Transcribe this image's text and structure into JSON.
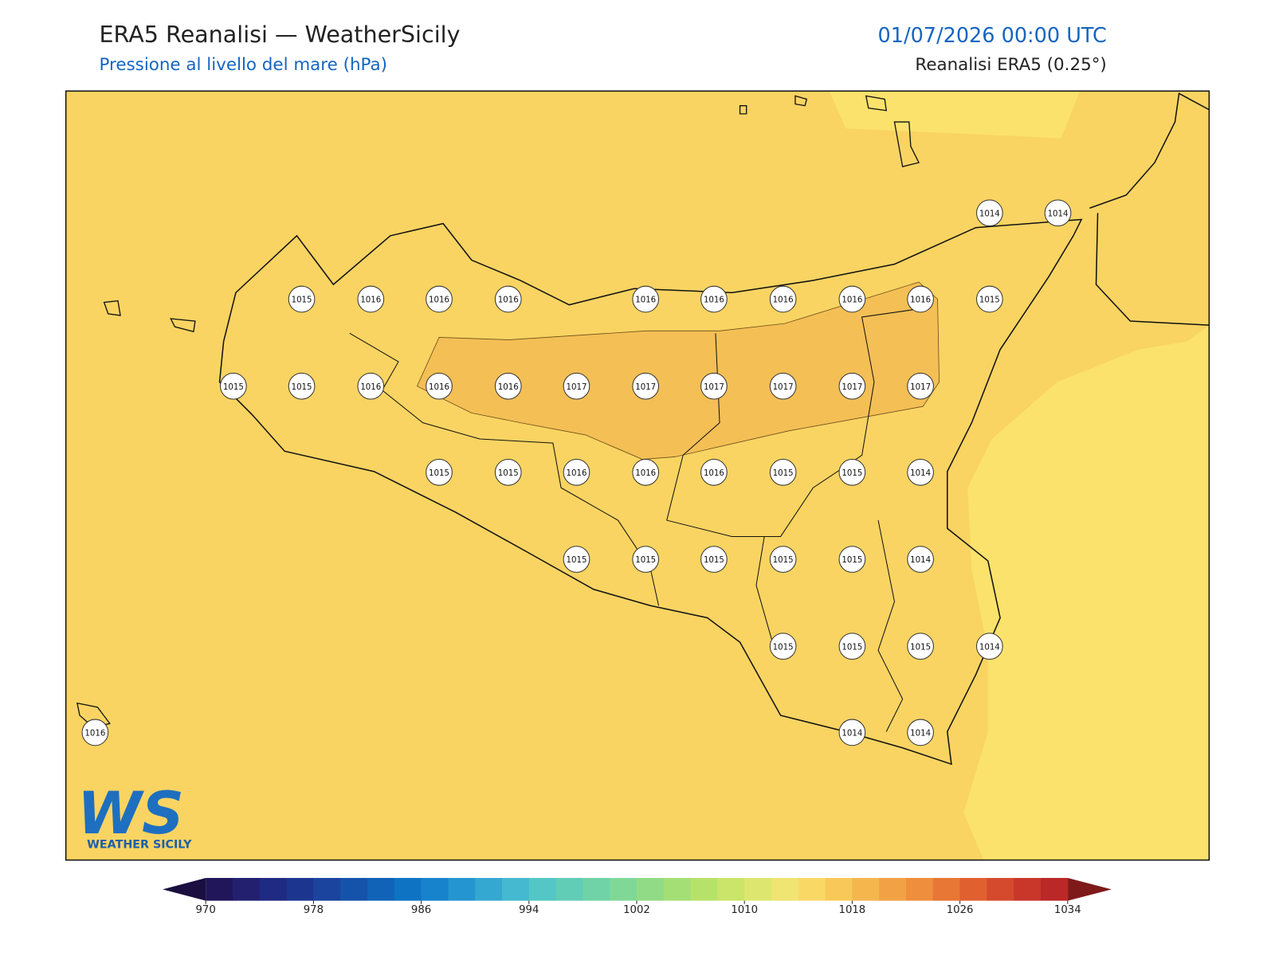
{
  "header": {
    "title": "ERA5 Reanalisi — WeatherSicily",
    "subtitle": "Pressione al livello del mare (hPa)",
    "datetime": "01/07/2026 00:00 UTC",
    "source": "Reanalisi ERA5 (0.25°)"
  },
  "logo": {
    "mark": "WS",
    "name": "WEATHER SICILY"
  },
  "stations": [
    1014,
    1014,
    1015,
    1016,
    1016,
    1016,
    1016,
    1016,
    1016,
    1016,
    1016,
    1015,
    1015,
    1015,
    1016,
    1016,
    1016,
    1017,
    1017,
    1017,
    1017,
    1017,
    1017,
    1015,
    1015,
    1016,
    1016,
    1016,
    1015,
    1015,
    1014,
    1015,
    1015,
    1015,
    1015,
    1015,
    1014,
    1015,
    1015,
    1015,
    1014,
    1016,
    1014,
    1014
  ],
  "colorbar": {
    "lim": [
      970,
      1034
    ],
    "ticks": [
      970,
      978,
      986,
      994,
      1002,
      1010,
      1018,
      1026,
      1034
    ],
    "colors": [
      "#21165a",
      "#232070",
      "#1f2a82",
      "#1c3690",
      "#1a449e",
      "#1553aa",
      "#1163b8",
      "#0f73c4",
      "#1683cc",
      "#2495d0",
      "#35a8d2",
      "#45b9cf",
      "#55c6c6",
      "#62cdb7",
      "#70d3a8",
      "#80d897",
      "#92db86",
      "#a4df76",
      "#b7e26a",
      "#cbe56a",
      "#dde770",
      "#f0e472",
      "#fad866",
      "#f8c858",
      "#f5b64e",
      "#f2a244",
      "#ef8e3c",
      "#e87634",
      "#e06030",
      "#d54a2d",
      "#c9372b",
      "#bb2828"
    ],
    "under": "#1a0f40",
    "over": "#7e1a1a"
  }
}
